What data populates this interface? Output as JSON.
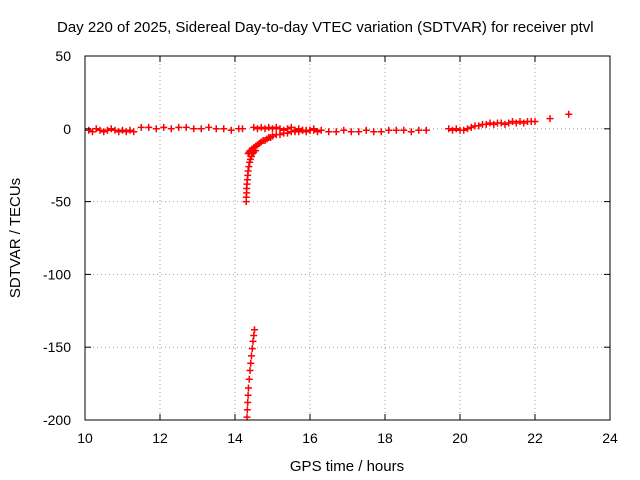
{
  "chart_data": {
    "type": "scatter",
    "title": "Day 220 of 2025, Sidereal Day-to-day VTEC variation (SDTVAR) for receiver ptvl",
    "xlabel": "GPS time / hours",
    "ylabel": "SDTVAR / TECUs",
    "xlim": [
      10,
      24
    ],
    "ylim": [
      -200,
      50
    ],
    "xticks": [
      10,
      12,
      14,
      16,
      18,
      20,
      22,
      24
    ],
    "yticks": [
      -200,
      -150,
      -100,
      -50,
      0,
      50
    ],
    "xtick_labels": [
      "10",
      "12",
      "14",
      "16",
      "18",
      "20",
      "22",
      "24"
    ],
    "ytick_labels": [
      "-200",
      "-150",
      "-100",
      "-50",
      "0",
      "50"
    ],
    "grid": true,
    "marker": "plus",
    "color": "#ff0000",
    "series": [
      {
        "x": [
          10.1,
          10.2,
          10.3,
          10.4,
          10.5,
          10.6,
          10.7,
          10.8,
          10.9,
          11.0,
          11.1,
          11.2,
          11.3,
          11.5,
          11.7,
          11.9,
          12.1,
          12.3,
          12.5,
          12.7,
          12.9,
          13.1,
          13.3,
          13.5,
          13.7,
          13.9,
          14.1,
          14.2,
          14.5,
          14.6,
          14.7,
          14.8,
          14.9,
          15.0,
          15.1,
          15.2,
          15.3,
          15.4,
          15.5,
          15.6,
          15.7,
          15.8,
          15.9,
          16.0,
          16.1,
          16.2,
          16.3,
          16.5,
          16.7,
          16.9,
          17.1,
          17.3,
          17.5,
          17.7,
          17.9,
          18.1,
          18.3,
          18.5,
          18.7,
          18.9,
          19.1,
          19.7,
          19.8,
          19.9,
          20.0,
          20.1,
          20.2,
          20.3,
          20.4,
          20.5,
          20.6,
          20.7,
          20.8,
          20.9,
          21.0,
          21.1,
          21.2,
          21.3,
          21.4,
          21.5,
          21.6,
          21.7,
          21.8,
          21.9,
          22.0,
          22.4,
          22.9
        ],
        "y": [
          -1,
          -2,
          0,
          -1,
          -2,
          -1,
          0,
          -1,
          -2,
          -1,
          -2,
          -1,
          -2,
          1,
          1,
          0,
          1,
          0,
          1,
          1,
          0,
          0,
          1,
          0,
          0,
          -1,
          0,
          0,
          1,
          0,
          1,
          0,
          1,
          0,
          1,
          0,
          -1,
          0,
          1,
          -1,
          0,
          -1,
          -2,
          -1,
          0,
          -2,
          -1,
          -2,
          -2,
          -1,
          -2,
          -2,
          -1,
          -2,
          -2,
          -1,
          -1,
          -1,
          -2,
          -1,
          -1,
          0,
          -1,
          0,
          -1,
          -1,
          0,
          1,
          2,
          2,
          3,
          3,
          4,
          3,
          4,
          4,
          3,
          4,
          5,
          4,
          5,
          4,
          5,
          5,
          5,
          7,
          10
        ]
      },
      {
        "x": [
          14.35,
          14.38,
          14.4,
          14.45,
          14.5,
          14.55,
          14.6,
          14.65,
          14.7,
          14.75,
          14.8,
          14.85,
          14.9,
          14.95,
          15.0,
          15.1,
          15.2,
          15.3,
          15.4,
          15.5,
          15.6,
          15.7,
          15.8,
          15.9,
          16.0,
          16.1
        ],
        "y": [
          -17,
          -16,
          -15,
          -14,
          -13,
          -12,
          -11,
          -10,
          -9,
          -8,
          -8,
          -7,
          -6,
          -6,
          -5,
          -4,
          -4,
          -3,
          -3,
          -2,
          -2,
          -2,
          -1,
          -1,
          -1,
          -1
        ]
      },
      {
        "x": [
          14.3,
          14.3,
          14.31,
          14.31,
          14.32,
          14.33,
          14.34,
          14.35,
          14.37,
          14.39,
          14.41,
          14.44,
          14.47,
          14.5,
          14.55
        ],
        "y": [
          -50,
          -47,
          -44,
          -41,
          -38,
          -35,
          -32,
          -29,
          -26,
          -23,
          -21,
          -19,
          -17,
          -16,
          -15
        ]
      },
      {
        "x": [
          14.32,
          14.33,
          14.34,
          14.35,
          14.36,
          14.38,
          14.4,
          14.42,
          14.44,
          14.46,
          14.48,
          14.5,
          14.52
        ],
        "y": [
          -198,
          -193,
          -188,
          -183,
          -178,
          -172,
          -166,
          -161,
          -156,
          -151,
          -146,
          -142,
          -138
        ]
      }
    ]
  }
}
